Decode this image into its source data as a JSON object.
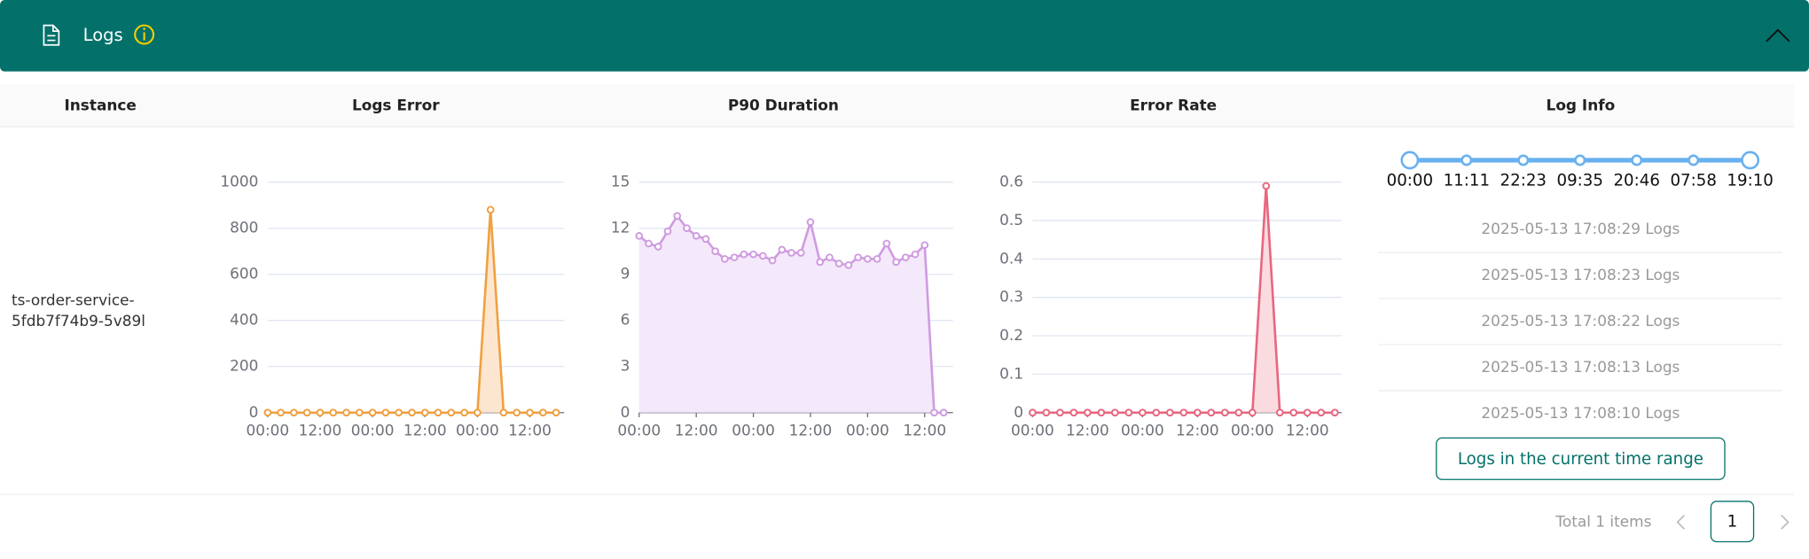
{
  "header": {
    "title": "Logs"
  },
  "table": {
    "columns": [
      "Instance",
      "Logs Error",
      "P90 Duration",
      "Error Rate",
      "Log Info"
    ],
    "instance": [
      "ts-order-service-",
      "5fdb7f74b9-5v89l"
    ]
  },
  "chart_data": [
    {
      "type": "line",
      "color": "#f0a040",
      "fill_color": "#fde6d0",
      "categories": [
        "00:00",
        null,
        null,
        null,
        "12:00",
        null,
        null,
        null,
        "00:00",
        null,
        null,
        null,
        "12:00",
        null,
        null,
        null,
        "00:00",
        null,
        null,
        null,
        "12:00",
        null,
        null
      ],
      "values": [
        0,
        0,
        0,
        0,
        0,
        0,
        0,
        0,
        0,
        0,
        0,
        0,
        0,
        0,
        0,
        0,
        0,
        880,
        0,
        0,
        0,
        0,
        0
      ],
      "ylim": [
        0,
        1000
      ],
      "yticks": [
        0,
        200,
        400,
        600,
        800,
        1000
      ],
      "grid": true
    },
    {
      "type": "line",
      "color": "#cf9be0",
      "fill_color": "#f4e8fb",
      "categories": [
        "00:00",
        null,
        null,
        null,
        null,
        null,
        "12:00",
        null,
        null,
        null,
        null,
        null,
        "00:00",
        null,
        null,
        null,
        null,
        null,
        "12:00",
        null,
        null,
        null,
        null,
        null,
        "00:00",
        null,
        null,
        null,
        null,
        null,
        "12:00",
        null,
        null
      ],
      "values": [
        11.5,
        11.0,
        10.8,
        11.8,
        12.8,
        12.0,
        11.5,
        11.3,
        10.5,
        10.0,
        10.1,
        10.3,
        10.3,
        10.2,
        9.9,
        10.6,
        10.4,
        10.4,
        12.4,
        9.8,
        10.1,
        9.7,
        9.6,
        10.1,
        10.0,
        10.0,
        11.0,
        9.8,
        10.1,
        10.3,
        10.9,
        0,
        0
      ],
      "ylim": [
        0,
        15
      ],
      "yticks": [
        0,
        3,
        6,
        9,
        12,
        15
      ],
      "grid": true
    },
    {
      "type": "line",
      "color": "#e8667f",
      "fill_color": "#fadbe0",
      "categories": [
        "00:00",
        null,
        null,
        null,
        "12:00",
        null,
        null,
        null,
        "00:00",
        null,
        null,
        null,
        "12:00",
        null,
        null,
        null,
        "00:00",
        null,
        null,
        null,
        "12:00",
        null,
        null
      ],
      "values": [
        0,
        0,
        0,
        0,
        0,
        0,
        0,
        0,
        0,
        0,
        0,
        0,
        0,
        0,
        0,
        0,
        0,
        0.59,
        0,
        0,
        0,
        0,
        0
      ],
      "ylim": [
        0,
        0.6
      ],
      "yticks": [
        0,
        0.1,
        0.2,
        0.3,
        0.4,
        0.5,
        0.6
      ],
      "grid": true
    }
  ],
  "log_info": {
    "slider_marks": [
      "00:00",
      "11:11",
      "22:23",
      "09:35",
      "20:46",
      "07:58",
      "19:10"
    ],
    "entries": [
      "2025-05-13 17:08:29 Logs",
      "2025-05-13 17:08:23 Logs",
      "2025-05-13 17:08:22 Logs",
      "2025-05-13 17:08:13 Logs",
      "2025-05-13 17:08:10 Logs"
    ],
    "button": "Logs in the current time range"
  },
  "pagination": {
    "total": "Total 1 items",
    "current": 1
  }
}
